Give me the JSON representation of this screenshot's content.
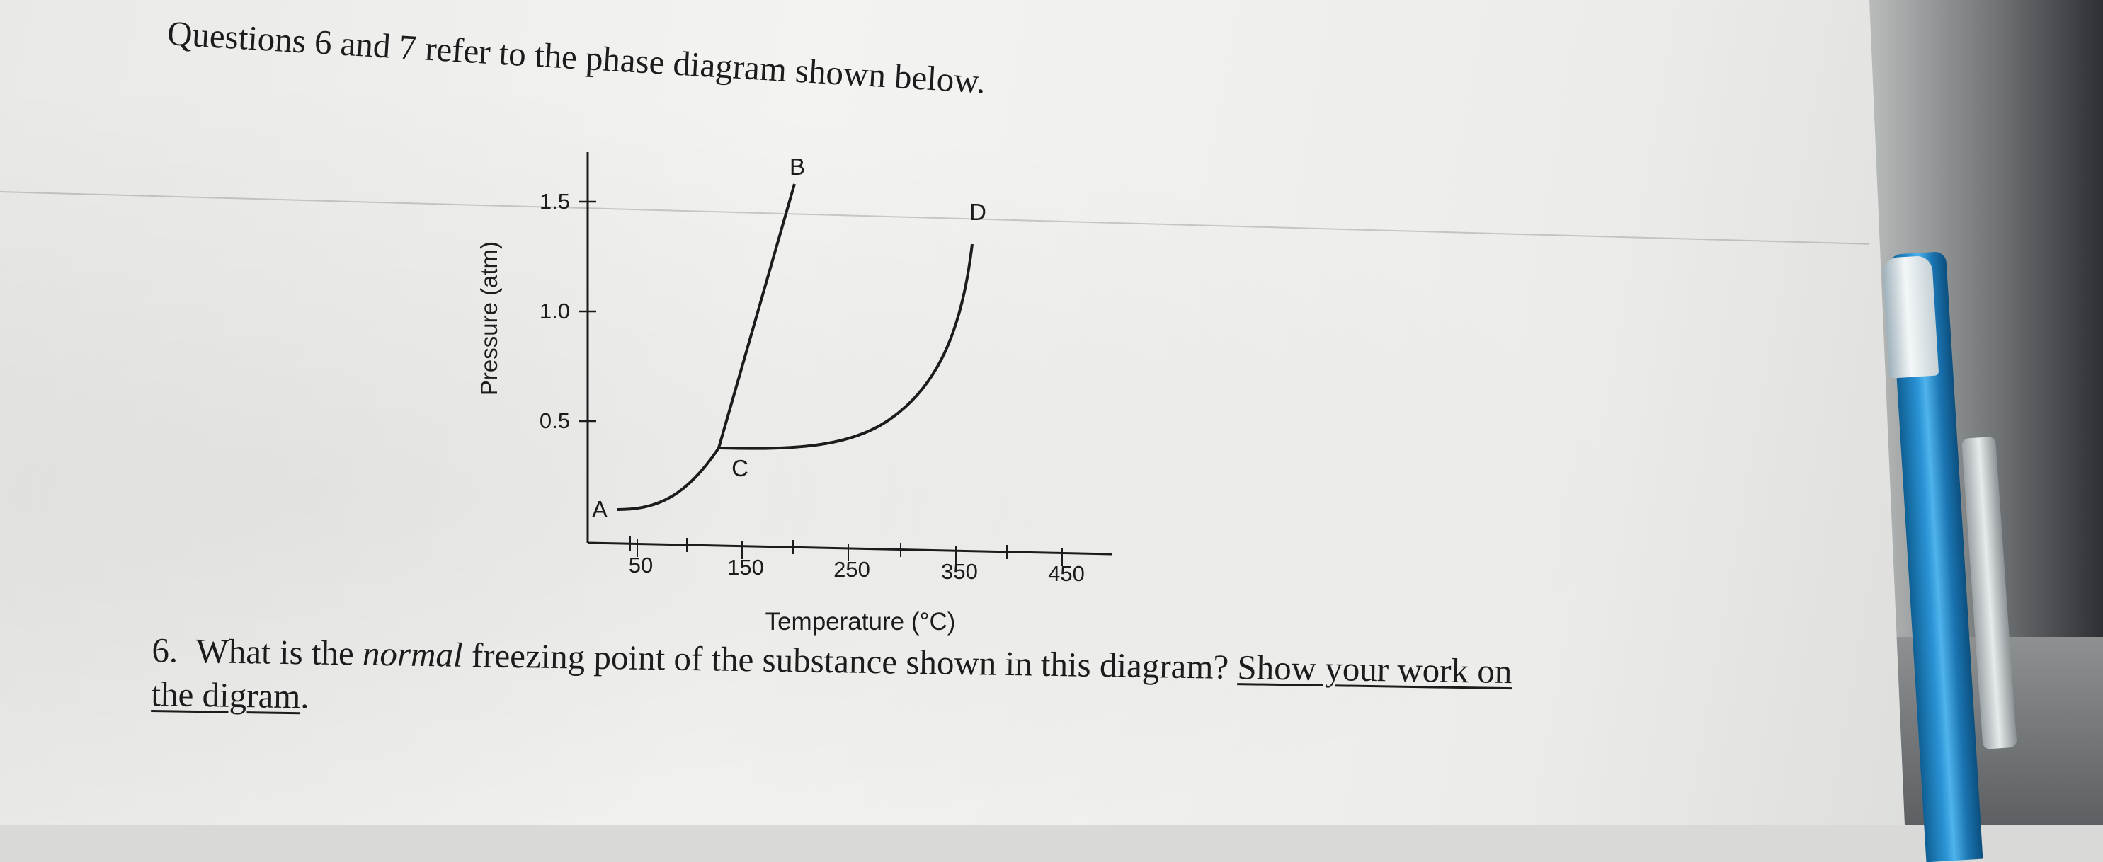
{
  "header": {
    "text": "Questions 6 and 7 refer to the phase diagram shown below."
  },
  "diagram": {
    "ylabel": "Pressure (atm)",
    "xlabel": "Temperature (°C)",
    "yticks": [
      {
        "label": "1.5",
        "value": 1.5
      },
      {
        "label": "1.0",
        "value": 1.0
      },
      {
        "label": "0.5",
        "value": 0.5
      }
    ],
    "xticks": [
      {
        "label": "50",
        "value": 50
      },
      {
        "label": "150",
        "value": 150
      },
      {
        "label": "250",
        "value": 250
      },
      {
        "label": "350",
        "value": 350
      },
      {
        "label": "450",
        "value": 450
      }
    ],
    "points": {
      "A": {
        "label": "A"
      },
      "B": {
        "label": "B"
      },
      "C": {
        "label": "C"
      },
      "D": {
        "label": "D"
      }
    }
  },
  "question": {
    "number": "6.",
    "text_before": "What is the",
    "text_italic": "normal",
    "text_middle": "freezing point of the substance shown in this diagram?",
    "text_underlined_1": "Show your work on",
    "text_underlined_2": "the digram",
    "text_end": "."
  },
  "colors": {
    "ink": "#1c1c1c",
    "pen_blue": "#2a93d4"
  }
}
